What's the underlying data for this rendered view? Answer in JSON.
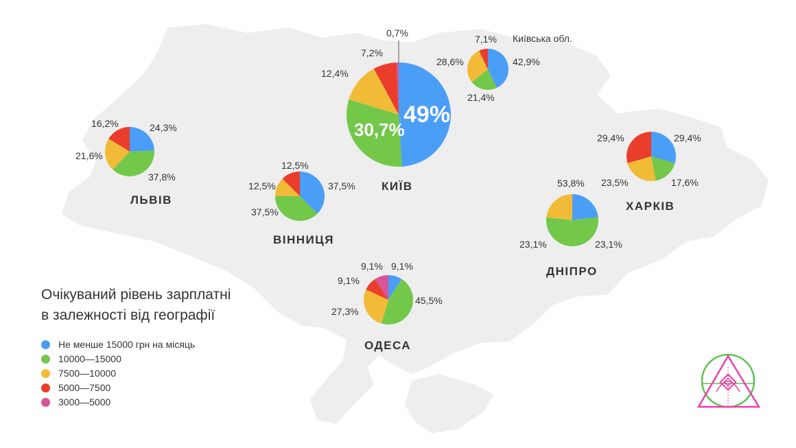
{
  "colors": {
    "map": "#eeeeee",
    "segments": [
      "#4a9ef6",
      "#73c84a",
      "#f1bb38",
      "#ea3d2c",
      "#d8559a"
    ],
    "logo_green": "#5cc04f",
    "logo_pink": "#ee3fa8"
  },
  "legend": {
    "title_line1": "Очікуваний рівень зарплатні",
    "title_line2": "в залежності від географії",
    "items": [
      "Не менше 15000 грн на місяць",
      "10000—15000",
      "7500—10000",
      "5000—7500",
      "3000—5000"
    ]
  },
  "chart_data": [
    {
      "type": "pie",
      "city": "ЛЬВІВ",
      "categories": [
        "Не менше 15000 грн на місяць",
        "10000—15000",
        "7500—10000",
        "5000—7500"
      ],
      "values": [
        24.3,
        37.8,
        21.6,
        16.2
      ],
      "labels": [
        "24,3%",
        "37,8%",
        "21,6%",
        "16,2%"
      ]
    },
    {
      "type": "pie",
      "city": "ВІННИЦЯ",
      "categories": [
        "Не менше 15000 грн на місяць",
        "10000—15000",
        "7500—10000",
        "5000—7500"
      ],
      "values": [
        37.5,
        37.5,
        12.5,
        12.5
      ],
      "labels": [
        "37,5%",
        "37,5%",
        "12,5%",
        "12,5%"
      ]
    },
    {
      "type": "pie",
      "city": "КИЇВ",
      "categories": [
        "Не менше 15000 грн на місяць",
        "10000—15000",
        "7500—10000",
        "5000—7500",
        "3000—5000"
      ],
      "values": [
        49,
        30.7,
        12.4,
        7.2,
        0.7
      ],
      "labels": [
        "49%",
        "30,7%",
        "12,4%",
        "7,2%",
        "0,7%"
      ]
    },
    {
      "type": "pie",
      "city": "Київська обл.",
      "categories": [
        "Не менше 15000 грн на місяць",
        "10000—15000",
        "7500—10000",
        "5000—7500"
      ],
      "values": [
        42.9,
        21.4,
        28.6,
        7.1
      ],
      "labels": [
        "42,9%",
        "21,4%",
        "28,6%",
        "7,1%"
      ]
    },
    {
      "type": "pie",
      "city": "ХАРКІВ",
      "categories": [
        "Не менше 15000 грн на місяць",
        "10000—15000",
        "7500—10000",
        "5000—7500"
      ],
      "values": [
        29.4,
        17.6,
        23.5,
        29.4
      ],
      "labels": [
        "29,4%",
        "17,6%",
        "23,5%",
        "29,4%"
      ]
    },
    {
      "type": "pie",
      "city": "ДНІПРО",
      "categories": [
        "Не менше 15000 грн на місяць",
        "10000—15000",
        "7500—10000"
      ],
      "values": [
        23.1,
        53.8,
        23.1
      ],
      "labels": [
        "23,1%",
        "53,8%",
        "23,1%"
      ]
    },
    {
      "type": "pie",
      "city": "ОДЕСА",
      "categories": [
        "Не менше 15000 грн на місяць",
        "10000—15000",
        "7500—10000",
        "5000—7500",
        "3000—5000"
      ],
      "values": [
        9.1,
        45.5,
        27.3,
        9.1,
        9.1
      ],
      "labels": [
        "9,1%",
        "45,5%",
        "27,3%",
        "9,1%",
        "9,1%"
      ]
    }
  ]
}
